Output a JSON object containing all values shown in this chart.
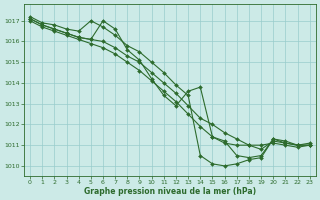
{
  "background_color": "#cceae7",
  "grid_color": "#99cccc",
  "line_color": "#2d6b2d",
  "marker_color": "#2d6b2d",
  "xlabel": "Graphe pression niveau de la mer (hPa)",
  "xlim": [
    -0.5,
    23.5
  ],
  "ylim": [
    1009.5,
    1017.8
  ],
  "yticks": [
    1010,
    1011,
    1012,
    1013,
    1014,
    1015,
    1016,
    1017
  ],
  "xticks": [
    0,
    1,
    2,
    3,
    4,
    5,
    6,
    7,
    8,
    9,
    10,
    11,
    12,
    13,
    14,
    15,
    16,
    17,
    18,
    19,
    20,
    21,
    22,
    23
  ],
  "series": [
    {
      "x": [
        0,
        1,
        2,
        3,
        4,
        5,
        6,
        7,
        8,
        9,
        10,
        11,
        12,
        13,
        14,
        15,
        16,
        17,
        18,
        19,
        20,
        21,
        22,
        23
      ],
      "y": [
        1017.2,
        1016.9,
        1016.8,
        1016.6,
        1016.5,
        1017.0,
        1016.7,
        1016.3,
        1015.8,
        1015.5,
        1015.0,
        1014.5,
        1013.9,
        1013.4,
        1010.5,
        1010.1,
        1010.0,
        1010.1,
        1010.3,
        1010.4,
        1011.3,
        1011.2,
        1011.0,
        1011.1
      ]
    },
    {
      "x": [
        0,
        1,
        2,
        3,
        4,
        5,
        6,
        7,
        8,
        9,
        10,
        11,
        12,
        13,
        14,
        15,
        16,
        17,
        18,
        19,
        20,
        21,
        22,
        23
      ],
      "y": [
        1017.1,
        1016.8,
        1016.6,
        1016.4,
        1016.2,
        1016.1,
        1016.0,
        1015.7,
        1015.3,
        1015.0,
        1014.5,
        1014.0,
        1013.5,
        1012.9,
        1012.3,
        1012.0,
        1011.6,
        1011.3,
        1011.0,
        1010.8,
        1011.2,
        1011.1,
        1011.0,
        1011.0
      ]
    },
    {
      "x": [
        0,
        1,
        2,
        3,
        4,
        5,
        6,
        7,
        8,
        9,
        10,
        11,
        12,
        13,
        14,
        15,
        16,
        17,
        18,
        19,
        20,
        21,
        22,
        23
      ],
      "y": [
        1017.0,
        1016.7,
        1016.5,
        1016.3,
        1016.1,
        1015.9,
        1015.7,
        1015.4,
        1015.0,
        1014.6,
        1014.1,
        1013.6,
        1013.1,
        1012.5,
        1011.9,
        1011.4,
        1011.1,
        1011.0,
        1011.0,
        1011.0,
        1011.1,
        1011.0,
        1010.9,
        1011.0
      ]
    },
    {
      "x": [
        0,
        1,
        2,
        3,
        4,
        5,
        6,
        7,
        8,
        9,
        10,
        11,
        12,
        13,
        14,
        15,
        16,
        17,
        18,
        19,
        20,
        21,
        22,
        23
      ],
      "y": [
        1017.1,
        1016.8,
        1016.6,
        1016.4,
        1016.2,
        1016.1,
        1017.0,
        1016.6,
        1015.6,
        1015.1,
        1014.2,
        1013.4,
        1012.9,
        1013.6,
        1013.8,
        1011.4,
        1011.2,
        1010.5,
        1010.4,
        1010.5,
        1011.3,
        1011.1,
        1011.0,
        1011.0
      ]
    }
  ]
}
